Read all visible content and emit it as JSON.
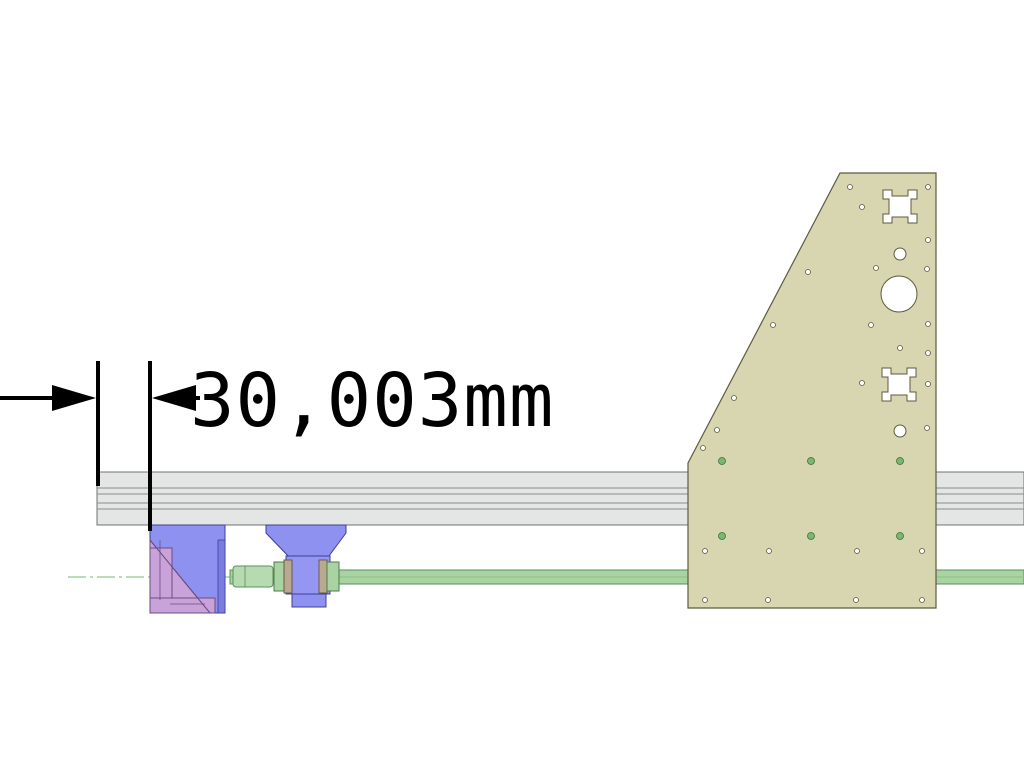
{
  "dimension": {
    "value_label": "30,003mm"
  },
  "colors": {
    "background": "#ffffff",
    "rail_fill": "#e4e5e5",
    "rail_stroke": "#6f7070",
    "plate_fill": "#d8d6b0",
    "plate_stroke": "#5c5b40",
    "rod_fill": "#a9d3a3",
    "rod_stroke": "#5d8f58",
    "block_blue": "#8f91f0",
    "block_purple": "#c8a2d8",
    "centerline": "#6fbf6f",
    "dimension_line": "#000000"
  }
}
